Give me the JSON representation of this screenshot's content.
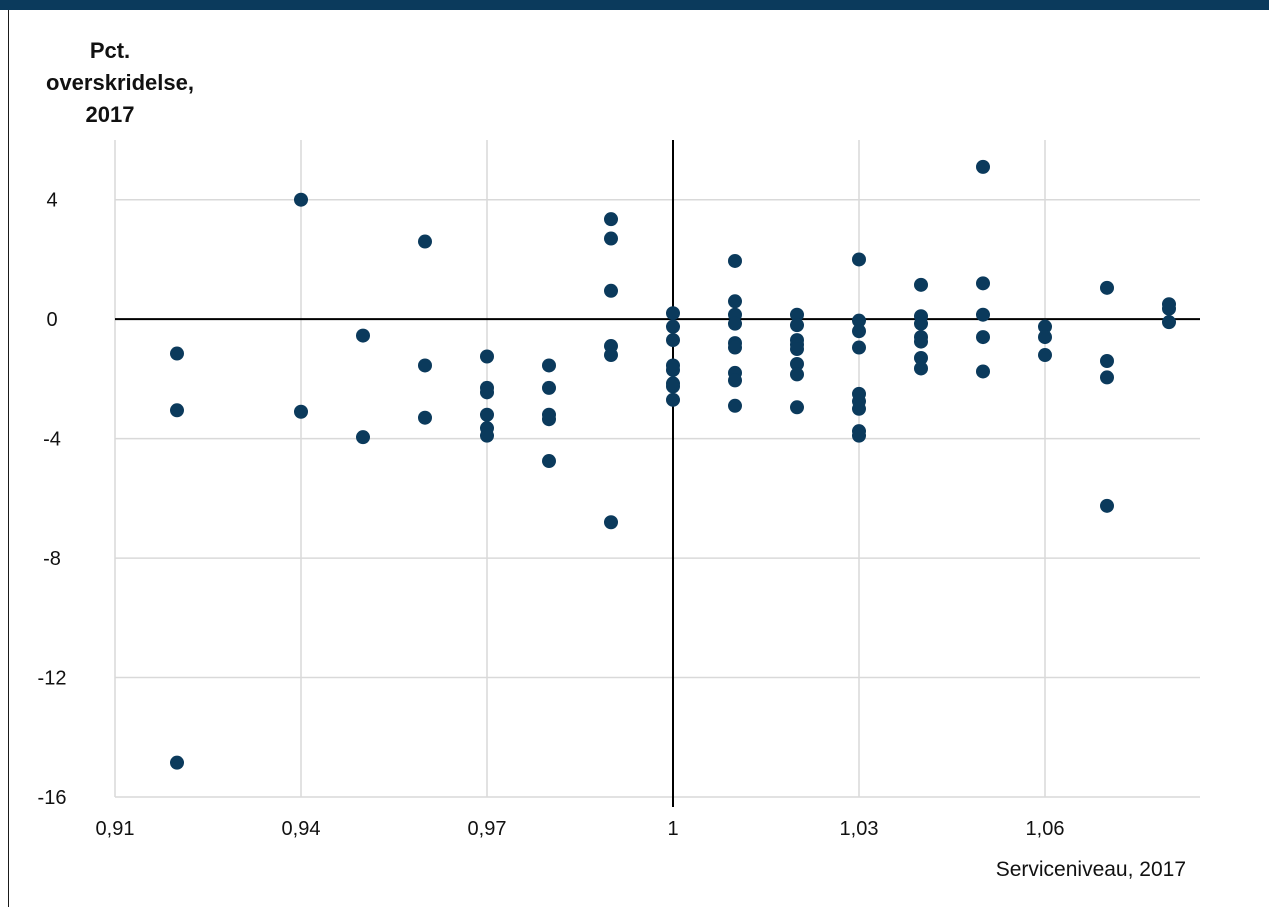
{
  "chart_data": {
    "type": "scatter",
    "title": "",
    "ylabel_lines": [
      "Pct.",
      "overskridelse,",
      "2017"
    ],
    "xlabel": "Serviceniveau, 2017",
    "xlim": [
      0.91,
      1.085
    ],
    "ylim": [
      -16,
      6
    ],
    "x_ticks": [
      0.91,
      0.94,
      0.97,
      1,
      1.03,
      1.06
    ],
    "x_tick_labels": [
      "0,91",
      "0,94",
      "0,97",
      "1",
      "1,03",
      "1,06"
    ],
    "y_ticks": [
      4,
      0,
      -4,
      -8,
      -12,
      -16
    ],
    "y_tick_labels": [
      "4",
      "0",
      "-4",
      "-8",
      "-12",
      "-16"
    ],
    "grid": true,
    "reference_lines": {
      "x": 1,
      "y": 0
    },
    "colors": {
      "points": "#0b3a5c",
      "grid": "#d9d9d9",
      "axis": "#000000",
      "header": "#0b3a5c"
    },
    "points": [
      {
        "x": 0.92,
        "y": -1.15
      },
      {
        "x": 0.92,
        "y": -3.05
      },
      {
        "x": 0.92,
        "y": -14.85
      },
      {
        "x": 0.94,
        "y": 4.0
      },
      {
        "x": 0.94,
        "y": -3.1
      },
      {
        "x": 0.95,
        "y": -0.55
      },
      {
        "x": 0.95,
        "y": -3.95
      },
      {
        "x": 0.96,
        "y": 2.6
      },
      {
        "x": 0.96,
        "y": -1.55
      },
      {
        "x": 0.96,
        "y": -3.3
      },
      {
        "x": 0.97,
        "y": -1.25
      },
      {
        "x": 0.97,
        "y": -2.3
      },
      {
        "x": 0.97,
        "y": -2.45
      },
      {
        "x": 0.97,
        "y": -3.2
      },
      {
        "x": 0.97,
        "y": -3.65
      },
      {
        "x": 0.97,
        "y": -3.9
      },
      {
        "x": 0.98,
        "y": -1.55
      },
      {
        "x": 0.98,
        "y": -2.3
      },
      {
        "x": 0.98,
        "y": -3.2
      },
      {
        "x": 0.98,
        "y": -3.35
      },
      {
        "x": 0.98,
        "y": -4.75
      },
      {
        "x": 0.99,
        "y": 3.35
      },
      {
        "x": 0.99,
        "y": 2.7
      },
      {
        "x": 0.99,
        "y": 0.95
      },
      {
        "x": 0.99,
        "y": -0.9
      },
      {
        "x": 0.99,
        "y": -1.2
      },
      {
        "x": 0.99,
        "y": -6.8
      },
      {
        "x": 1.0,
        "y": 0.2
      },
      {
        "x": 1.0,
        "y": -0.25
      },
      {
        "x": 1.0,
        "y": -0.7
      },
      {
        "x": 1.0,
        "y": -1.55
      },
      {
        "x": 1.0,
        "y": -1.7
      },
      {
        "x": 1.0,
        "y": -2.15
      },
      {
        "x": 1.0,
        "y": -2.25
      },
      {
        "x": 1.0,
        "y": -2.7
      },
      {
        "x": 1.01,
        "y": 1.95
      },
      {
        "x": 1.01,
        "y": 0.6
      },
      {
        "x": 1.01,
        "y": 0.15
      },
      {
        "x": 1.01,
        "y": -0.15
      },
      {
        "x": 1.01,
        "y": -0.8
      },
      {
        "x": 1.01,
        "y": -0.95
      },
      {
        "x": 1.01,
        "y": -1.8
      },
      {
        "x": 1.01,
        "y": -2.05
      },
      {
        "x": 1.01,
        "y": -2.9
      },
      {
        "x": 1.02,
        "y": 0.15
      },
      {
        "x": 1.02,
        "y": -0.2
      },
      {
        "x": 1.02,
        "y": -0.7
      },
      {
        "x": 1.02,
        "y": -0.85
      },
      {
        "x": 1.02,
        "y": -1.0
      },
      {
        "x": 1.02,
        "y": -1.5
      },
      {
        "x": 1.02,
        "y": -1.85
      },
      {
        "x": 1.02,
        "y": -2.95
      },
      {
        "x": 1.03,
        "y": 2.0
      },
      {
        "x": 1.03,
        "y": -0.05
      },
      {
        "x": 1.03,
        "y": -0.4
      },
      {
        "x": 1.03,
        "y": -0.95
      },
      {
        "x": 1.03,
        "y": -2.5
      },
      {
        "x": 1.03,
        "y": -2.75
      },
      {
        "x": 1.03,
        "y": -3.0
      },
      {
        "x": 1.03,
        "y": -3.75
      },
      {
        "x": 1.03,
        "y": -3.9
      },
      {
        "x": 1.04,
        "y": 1.15
      },
      {
        "x": 1.04,
        "y": 0.1
      },
      {
        "x": 1.04,
        "y": -0.15
      },
      {
        "x": 1.04,
        "y": -0.6
      },
      {
        "x": 1.04,
        "y": -0.75
      },
      {
        "x": 1.04,
        "y": -1.3
      },
      {
        "x": 1.04,
        "y": -1.65
      },
      {
        "x": 1.05,
        "y": 5.1
      },
      {
        "x": 1.05,
        "y": 1.2
      },
      {
        "x": 1.05,
        "y": 0.15
      },
      {
        "x": 1.05,
        "y": -0.6
      },
      {
        "x": 1.05,
        "y": -1.75
      },
      {
        "x": 1.06,
        "y": -0.25
      },
      {
        "x": 1.06,
        "y": -0.6
      },
      {
        "x": 1.06,
        "y": -1.2
      },
      {
        "x": 1.07,
        "y": 1.05
      },
      {
        "x": 1.07,
        "y": -1.4
      },
      {
        "x": 1.07,
        "y": -1.95
      },
      {
        "x": 1.07,
        "y": -6.25
      },
      {
        "x": 1.08,
        "y": 0.5
      },
      {
        "x": 1.08,
        "y": 0.35
      },
      {
        "x": 1.08,
        "y": -0.1
      }
    ]
  }
}
